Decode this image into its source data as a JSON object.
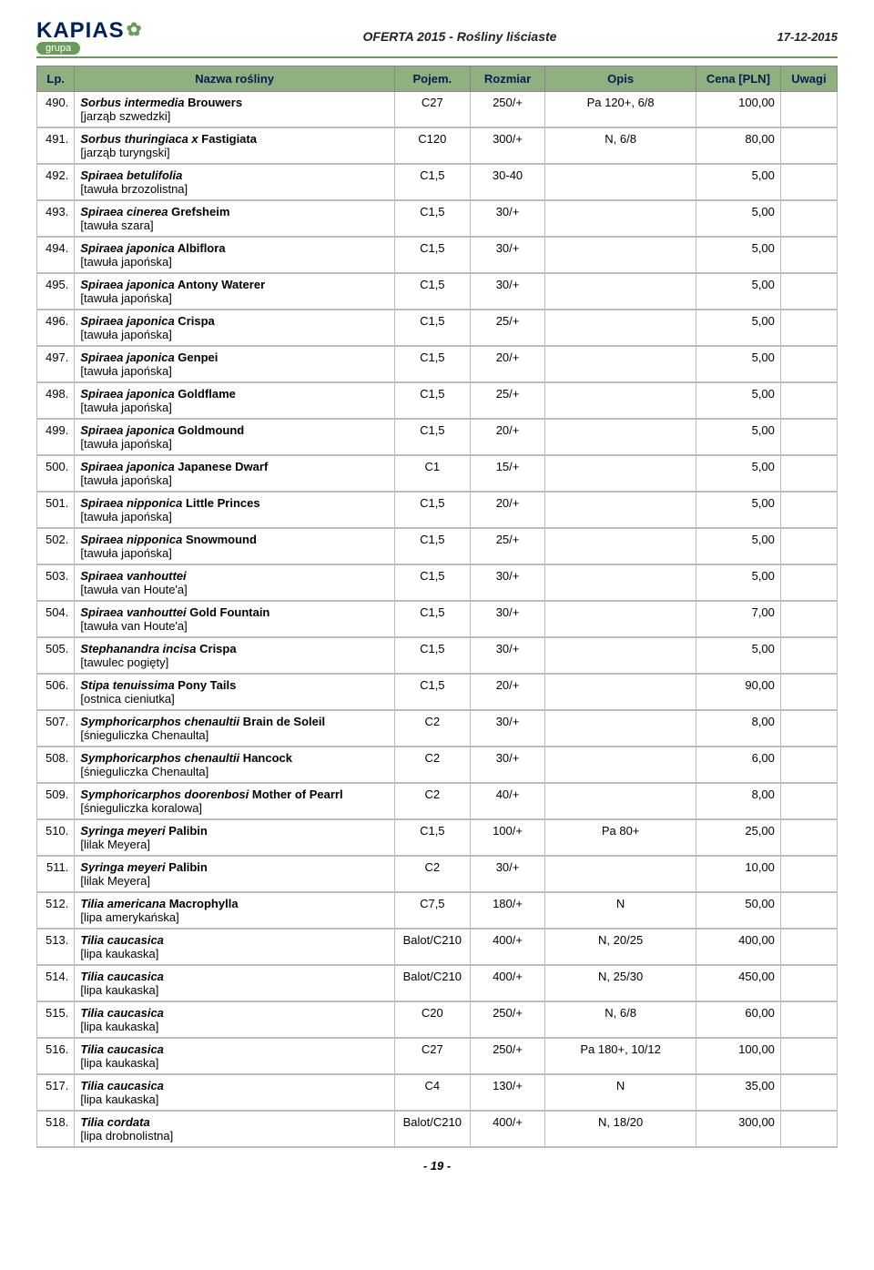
{
  "header": {
    "logo_text": "KAPIAS",
    "logo_sub": "grupa",
    "title": "OFERTA 2015 - Rośliny liściaste",
    "date": "17-12-2015"
  },
  "columns": {
    "lp": "Lp.",
    "nazwa": "Nazwa rośliny",
    "pojem": "Pojem.",
    "rozmiar": "Rozmiar",
    "opis": "Opis",
    "cena": "Cena [PLN]",
    "uwagi": "Uwagi"
  },
  "rows": [
    {
      "lp": "490.",
      "latin": "Sorbus intermedia",
      "cultivar": " Brouwers",
      "pl": "[jarząb szwedzki]",
      "pojem": "C27",
      "rozmiar": "250/+",
      "opis": "Pa 120+, 6/8",
      "cena": "100,00",
      "uwagi": ""
    },
    {
      "lp": "491.",
      "latin": "Sorbus thuringiaca x",
      "cultivar": " Fastigiata",
      "pl": "[jarząb turyngski]",
      "pojem": "C120",
      "rozmiar": "300/+",
      "opis": "N, 6/8",
      "cena": "80,00",
      "uwagi": ""
    },
    {
      "lp": "492.",
      "latin": "Spiraea betulifolia",
      "cultivar": "",
      "pl": "[tawuła brzozolistna]",
      "pojem": "C1,5",
      "rozmiar": "30-40",
      "opis": "",
      "cena": "5,00",
      "uwagi": ""
    },
    {
      "lp": "493.",
      "latin": "Spiraea cinerea",
      "cultivar": " Grefsheim",
      "pl": "[tawuła szara]",
      "pojem": "C1,5",
      "rozmiar": "30/+",
      "opis": "",
      "cena": "5,00",
      "uwagi": ""
    },
    {
      "lp": "494.",
      "latin": "Spiraea japonica",
      "cultivar": " Albiflora",
      "pl": "[tawuła japońska]",
      "pojem": "C1,5",
      "rozmiar": "30/+",
      "opis": "",
      "cena": "5,00",
      "uwagi": ""
    },
    {
      "lp": "495.",
      "latin": "Spiraea japonica",
      "cultivar": " Antony Waterer",
      "pl": "[tawuła japońska]",
      "pojem": "C1,5",
      "rozmiar": "30/+",
      "opis": "",
      "cena": "5,00",
      "uwagi": ""
    },
    {
      "lp": "496.",
      "latin": "Spiraea japonica",
      "cultivar": " Crispa",
      "pl": "[tawuła japońska]",
      "pojem": "C1,5",
      "rozmiar": "25/+",
      "opis": "",
      "cena": "5,00",
      "uwagi": ""
    },
    {
      "lp": "497.",
      "latin": "Spiraea japonica",
      "cultivar": " Genpei",
      "pl": "[tawuła japońska]",
      "pojem": "C1,5",
      "rozmiar": "20/+",
      "opis": "",
      "cena": "5,00",
      "uwagi": ""
    },
    {
      "lp": "498.",
      "latin": "Spiraea japonica",
      "cultivar": " Goldflame",
      "pl": "[tawuła japońska]",
      "pojem": "C1,5",
      "rozmiar": "25/+",
      "opis": "",
      "cena": "5,00",
      "uwagi": ""
    },
    {
      "lp": "499.",
      "latin": "Spiraea japonica",
      "cultivar": " Goldmound",
      "pl": "[tawuła japońska]",
      "pojem": "C1,5",
      "rozmiar": "20/+",
      "opis": "",
      "cena": "5,00",
      "uwagi": ""
    },
    {
      "lp": "500.",
      "latin": "Spiraea japonica",
      "cultivar": " Japanese Dwarf",
      "pl": "[tawuła japońska]",
      "pojem": "C1",
      "rozmiar": "15/+",
      "opis": "",
      "cena": "5,00",
      "uwagi": ""
    },
    {
      "lp": "501.",
      "latin": "Spiraea nipponica",
      "cultivar": " Little Princes",
      "pl": "[tawuła japońska]",
      "pojem": "C1,5",
      "rozmiar": "20/+",
      "opis": "",
      "cena": "5,00",
      "uwagi": ""
    },
    {
      "lp": "502.",
      "latin": "Spiraea nipponica",
      "cultivar": " Snowmound",
      "pl": "[tawuła japońska]",
      "pojem": "C1,5",
      "rozmiar": "25/+",
      "opis": "",
      "cena": "5,00",
      "uwagi": ""
    },
    {
      "lp": "503.",
      "latin": "Spiraea vanhouttei",
      "cultivar": "",
      "pl": "[tawuła van Houte'a]",
      "pojem": "C1,5",
      "rozmiar": "30/+",
      "opis": "",
      "cena": "5,00",
      "uwagi": ""
    },
    {
      "lp": "504.",
      "latin": "Spiraea vanhouttei",
      "cultivar": " Gold Fountain",
      "pl": "[tawuła van Houte'a]",
      "pojem": "C1,5",
      "rozmiar": "30/+",
      "opis": "",
      "cena": "7,00",
      "uwagi": ""
    },
    {
      "lp": "505.",
      "latin": "Stephanandra incisa",
      "cultivar": " Crispa",
      "pl": "[tawulec pogięty]",
      "pojem": "C1,5",
      "rozmiar": "30/+",
      "opis": "",
      "cena": "5,00",
      "uwagi": ""
    },
    {
      "lp": "506.",
      "latin": "Stipa tenuissima",
      "cultivar": " Pony Tails",
      "pl": "[ostnica cieniutka]",
      "pojem": "C1,5",
      "rozmiar": "20/+",
      "opis": "",
      "cena": "90,00",
      "uwagi": ""
    },
    {
      "lp": "507.",
      "latin": "Symphoricarphos chenaultii",
      "cultivar": " Brain de Soleil",
      "pl": "[śnieguliczka Chenaulta]",
      "pojem": "C2",
      "rozmiar": "30/+",
      "opis": "",
      "cena": "8,00",
      "uwagi": ""
    },
    {
      "lp": "508.",
      "latin": "Symphoricarphos chenaultii",
      "cultivar": " Hancock",
      "pl": "[śnieguliczka Chenaulta]",
      "pojem": "C2",
      "rozmiar": "30/+",
      "opis": "",
      "cena": "6,00",
      "uwagi": ""
    },
    {
      "lp": "509.",
      "latin": "Symphoricarphos doorenbosi",
      "cultivar": " Mother of Pearrl",
      "pl": "[śnieguliczka koralowa]",
      "pojem": "C2",
      "rozmiar": "40/+",
      "opis": "",
      "cena": "8,00",
      "uwagi": ""
    },
    {
      "lp": "510.",
      "latin": "Syringa meyeri",
      "cultivar": " Palibin",
      "pl": "[lilak Meyera]",
      "pojem": "C1,5",
      "rozmiar": "100/+",
      "opis": "Pa 80+",
      "cena": "25,00",
      "uwagi": ""
    },
    {
      "lp": "511.",
      "latin": "Syringa meyeri",
      "cultivar": " Palibin",
      "pl": "[lilak Meyera]",
      "pojem": "C2",
      "rozmiar": "30/+",
      "opis": "",
      "cena": "10,00",
      "uwagi": ""
    },
    {
      "lp": "512.",
      "latin": "Tilia americana",
      "cultivar": " Macrophylla",
      "pl": "[lipa amerykańska]",
      "pojem": "C7,5",
      "rozmiar": "180/+",
      "opis": "N",
      "cena": "50,00",
      "uwagi": ""
    },
    {
      "lp": "513.",
      "latin": "Tilia caucasica",
      "cultivar": "",
      "pl": "[lipa kaukaska]",
      "pojem": "Balot/C210",
      "rozmiar": "400/+",
      "opis": "N, 20/25",
      "cena": "400,00",
      "uwagi": ""
    },
    {
      "lp": "514.",
      "latin": "Tilia caucasica",
      "cultivar": "",
      "pl": "[lipa kaukaska]",
      "pojem": "Balot/C210",
      "rozmiar": "400/+",
      "opis": "N, 25/30",
      "cena": "450,00",
      "uwagi": ""
    },
    {
      "lp": "515.",
      "latin": "Tilia caucasica",
      "cultivar": "",
      "pl": "[lipa kaukaska]",
      "pojem": "C20",
      "rozmiar": "250/+",
      "opis": "N, 6/8",
      "cena": "60,00",
      "uwagi": ""
    },
    {
      "lp": "516.",
      "latin": "Tilia caucasica",
      "cultivar": "",
      "pl": "[lipa kaukaska]",
      "pojem": "C27",
      "rozmiar": "250/+",
      "opis": "Pa 180+, 10/12",
      "cena": "100,00",
      "uwagi": ""
    },
    {
      "lp": "517.",
      "latin": "Tilia caucasica",
      "cultivar": "",
      "pl": "[lipa kaukaska]",
      "pojem": "C4",
      "rozmiar": "130/+",
      "opis": "N",
      "cena": "35,00",
      "uwagi": ""
    },
    {
      "lp": "518.",
      "latin": "Tilia cordata",
      "cultivar": "",
      "pl": "[lipa drobnolistna]",
      "pojem": "Balot/C210",
      "rozmiar": "400/+",
      "opis": "N, 18/20",
      "cena": "300,00",
      "uwagi": ""
    }
  ],
  "page_num": "- 19 -"
}
